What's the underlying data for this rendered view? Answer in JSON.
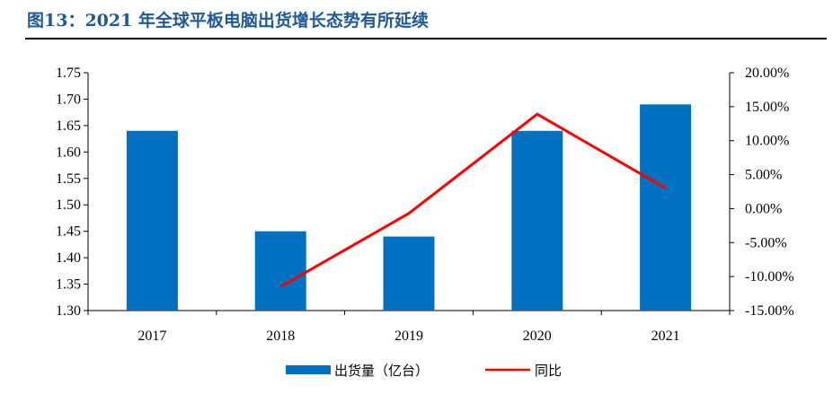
{
  "figure_title": "图13：2021 年全球平板电脑出货增长态势有所延续",
  "colors": {
    "bar": "#0070c0",
    "line": "#ff0000",
    "title": "#1f5a96"
  },
  "chart_data": {
    "type": "bar",
    "categories": [
      "2017",
      "2018",
      "2019",
      "2020",
      "2021"
    ],
    "series": [
      {
        "name": "出货量（亿台）",
        "type": "bar",
        "axis": "left",
        "values": [
          1.64,
          1.45,
          1.44,
          1.64,
          1.69
        ]
      },
      {
        "name": "同比",
        "type": "line",
        "axis": "right",
        "values": [
          null,
          -11.5,
          -0.7,
          13.9,
          3.0
        ]
      }
    ],
    "ylim": [
      1.3,
      1.75
    ],
    "yticks": [
      "1.30",
      "1.35",
      "1.40",
      "1.45",
      "1.50",
      "1.55",
      "1.60",
      "1.65",
      "1.70",
      "1.75"
    ],
    "y2lim": [
      -15,
      20
    ],
    "y2ticks": [
      "-15.00%",
      "-10.00%",
      "-5.00%",
      "0.00%",
      "5.00%",
      "10.00%",
      "15.00%",
      "20.00%"
    ],
    "grid": false,
    "legend": "bottom"
  }
}
